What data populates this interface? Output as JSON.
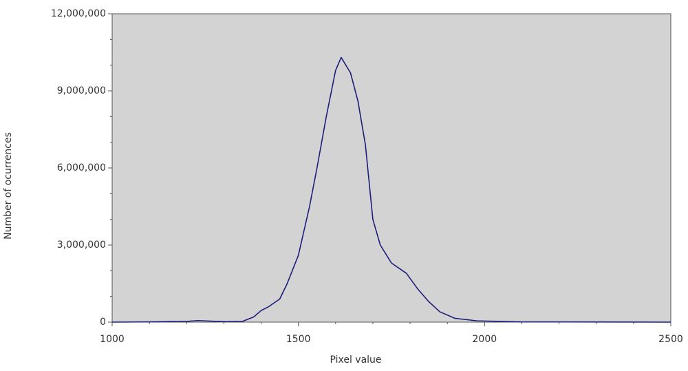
{
  "chart_data": {
    "type": "line",
    "x_label": "Pixel value",
    "y_label": "Number of ocurrences",
    "x": [
      1000,
      1100,
      1200,
      1230,
      1300,
      1350,
      1380,
      1400,
      1420,
      1450,
      1470,
      1500,
      1530,
      1550,
      1575,
      1600,
      1615,
      1640,
      1660,
      1680,
      1700,
      1720,
      1750,
      1790,
      1820,
      1850,
      1880,
      1920,
      1980,
      2100,
      2500
    ],
    "series": [
      {
        "name": "Occurrences",
        "color": "#1c1c7a",
        "values": [
          0,
          10000,
          30000,
          60000,
          20000,
          30000,
          200000,
          450000,
          600000,
          900000,
          1500000,
          2600000,
          4500000,
          6000000,
          8000000,
          9800000,
          10300000,
          9700000,
          8600000,
          6900000,
          4000000,
          3000000,
          2300000,
          1900000,
          1300000,
          800000,
          400000,
          150000,
          50000,
          10000,
          0
        ]
      }
    ],
    "xlim": [
      1000,
      2500
    ],
    "xticks": [
      1000,
      1500,
      2000,
      2500
    ],
    "xminorticks": [
      1100,
      1200,
      1300,
      1400,
      1600,
      1700,
      1800,
      1900,
      2100,
      2200,
      2300,
      2400
    ],
    "ylim": [
      0,
      12000000
    ],
    "yticks": [
      {
        "value": 0,
        "label": "0"
      },
      {
        "value": 3000000,
        "label": "3,000,000"
      },
      {
        "value": 6000000,
        "label": "6,000,000"
      },
      {
        "value": 9000000,
        "label": "9,000,000"
      },
      {
        "value": 12000000,
        "label": "12,000,000"
      }
    ],
    "yminorticks": [
      1000000,
      2000000,
      4000000,
      5000000,
      7000000,
      8000000,
      10000000,
      11000000
    ],
    "plot_background": "#d3d3d3"
  }
}
